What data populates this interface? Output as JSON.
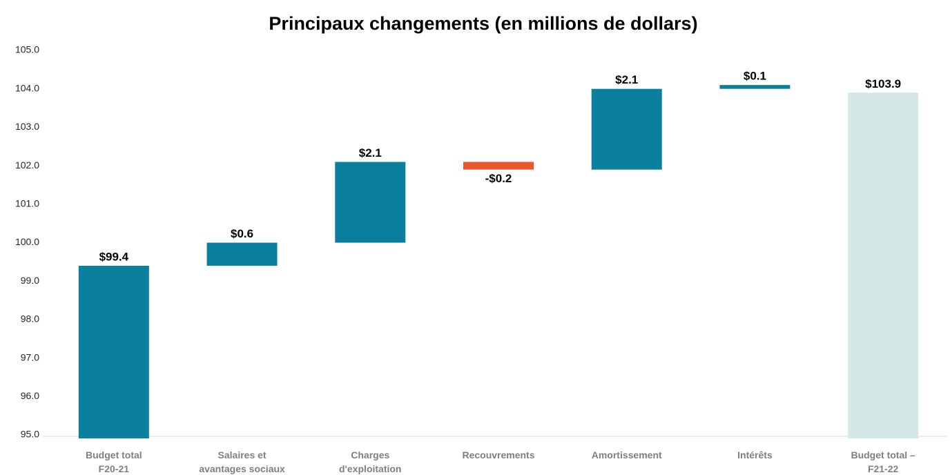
{
  "chart_data": {
    "type": "waterfall",
    "title": "Principaux changements (en millions de dollars)",
    "categories": [
      "Budget total\nF20-21",
      "Salaires et\navantages sociaux",
      "Charges\nd'exploitation",
      "Recouvrements",
      "Amortissement",
      "Intérêts",
      "Budget total –\nF21-22"
    ],
    "values": [
      99.4,
      0.6,
      2.1,
      -0.2,
      2.1,
      0.1,
      103.9
    ],
    "value_labels": [
      "$99.4",
      "$0.6",
      "$2.1",
      "-$0.2",
      "$2.1",
      "$0.1",
      "$103.9"
    ],
    "measures": [
      "absolute",
      "relative",
      "relative",
      "relative",
      "relative",
      "relative",
      "absolute"
    ],
    "colors": [
      "#0a7f9e",
      "#0a7f9e",
      "#0a7f9e",
      "#e8562a",
      "#0a7f9e",
      "#0a7f9e",
      "#d5e8e6"
    ],
    "ylim": [
      95,
      105
    ],
    "yticks": [
      {
        "value": 95,
        "label": "95.0"
      },
      {
        "value": 96,
        "label": "96.0"
      },
      {
        "value": 97,
        "label": "97.0"
      },
      {
        "value": 98,
        "label": "98.0"
      },
      {
        "value": 99,
        "label": "99.0"
      },
      {
        "value": 100,
        "label": "100.0"
      },
      {
        "value": 101,
        "label": "101.0"
      },
      {
        "value": 102,
        "label": "102.0"
      },
      {
        "value": 103,
        "label": "103.0"
      },
      {
        "value": 104,
        "label": "104.0"
      },
      {
        "value": 105,
        "label": "105.0"
      }
    ]
  }
}
